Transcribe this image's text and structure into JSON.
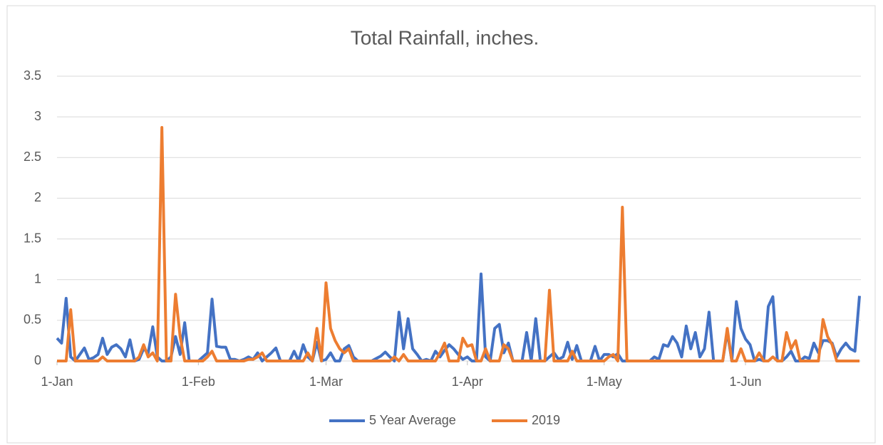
{
  "chart_data": {
    "type": "line",
    "title": "Total Rainfall, inches.",
    "categories": [
      "1-Jan",
      null,
      null,
      null,
      null,
      null,
      null,
      null,
      null,
      null,
      null,
      null,
      null,
      null,
      null,
      null,
      null,
      null,
      null,
      null,
      null,
      null,
      null,
      null,
      null,
      null,
      null,
      null,
      null,
      null,
      null,
      "1-Feb",
      null,
      null,
      null,
      null,
      null,
      null,
      null,
      null,
      null,
      null,
      null,
      null,
      null,
      null,
      null,
      null,
      null,
      null,
      null,
      null,
      null,
      null,
      null,
      null,
      null,
      null,
      null,
      "1-Mar",
      null,
      null,
      null,
      null,
      null,
      null,
      null,
      null,
      null,
      null,
      null,
      null,
      null,
      null,
      null,
      null,
      null,
      null,
      null,
      null,
      null,
      null,
      null,
      null,
      null,
      null,
      null,
      null,
      null,
      null,
      "1-Apr",
      null,
      null,
      null,
      null,
      null,
      null,
      null,
      null,
      null,
      null,
      null,
      null,
      null,
      null,
      null,
      null,
      null,
      null,
      null,
      null,
      null,
      null,
      null,
      null,
      null,
      null,
      null,
      null,
      null,
      "1-May",
      null,
      null,
      null,
      null,
      null,
      null,
      null,
      null,
      null,
      null,
      null,
      null,
      null,
      null,
      null,
      null,
      null,
      null,
      null,
      null,
      null,
      null,
      null,
      null,
      null,
      null,
      null,
      null,
      null,
      null,
      "1-Jun",
      null,
      null,
      null,
      null,
      null,
      null,
      null,
      null,
      null,
      null,
      null,
      null,
      null,
      null,
      null,
      null,
      null,
      null,
      null,
      null,
      null,
      null,
      null,
      null,
      null
    ],
    "series": [
      {
        "name": "5 Year Average",
        "color": "#4472c4",
        "values": [
          0.28,
          0.22,
          0.77,
          0.05,
          0,
          0.08,
          0.16,
          0.02,
          0.04,
          0.08,
          0.28,
          0.08,
          0.17,
          0.2,
          0.15,
          0.05,
          0.26,
          0,
          0.02,
          0.15,
          0.1,
          0.42,
          0.05,
          0,
          0,
          0.05,
          0.3,
          0.08,
          0.47,
          0,
          0,
          0,
          0.05,
          0.1,
          0.76,
          0.18,
          0.17,
          0.17,
          0.02,
          0.02,
          0,
          0.02,
          0.05,
          0.02,
          0.1,
          0,
          0.05,
          0.1,
          0.16,
          0,
          0,
          0,
          0.12,
          0,
          0.2,
          0.05,
          0,
          0.23,
          0,
          0.02,
          0.1,
          0,
          0,
          0.15,
          0.19,
          0.05,
          0,
          0,
          0,
          0,
          0.03,
          0.06,
          0.11,
          0.05,
          0,
          0.6,
          0.15,
          0.52,
          0.15,
          0.08,
          0,
          0.02,
          0,
          0.12,
          0.05,
          0.13,
          0.2,
          0.15,
          0.08,
          0.02,
          0.05,
          0,
          0,
          1.07,
          0.05,
          0,
          0.4,
          0.45,
          0.1,
          0.22,
          0,
          0,
          0,
          0.35,
          0,
          0.52,
          0,
          0,
          0.05,
          0.1,
          0.02,
          0.05,
          0.23,
          0.02,
          0.19,
          0,
          0,
          0,
          0.18,
          0,
          0.08,
          0.08,
          0.05,
          0.09,
          0,
          0,
          0,
          0,
          0,
          0,
          0,
          0.05,
          0.02,
          0.2,
          0.18,
          0.3,
          0.22,
          0.05,
          0.43,
          0.15,
          0.35,
          0.05,
          0.15,
          0.6,
          0,
          0,
          0,
          0.36,
          0,
          0.73,
          0.4,
          0.27,
          0.2,
          0,
          0.02,
          0,
          0.67,
          0.79,
          0,
          0,
          0.05,
          0.12,
          0,
          0,
          0.05,
          0.03,
          0.22,
          0.1,
          0.25,
          0.25,
          0.22,
          0.05,
          0.15,
          0.22,
          0.15,
          0.12,
          0.8
        ]
      },
      {
        "name": "2019",
        "color": "#ed7d31",
        "values": [
          0,
          0,
          0,
          0.63,
          0,
          0,
          0,
          0,
          0,
          0,
          0.05,
          0,
          0,
          0,
          0,
          0,
          0,
          0,
          0.05,
          0.2,
          0.05,
          0.1,
          0,
          2.87,
          0,
          0,
          0.82,
          0.3,
          0,
          0,
          0,
          0,
          0,
          0.05,
          0.12,
          0,
          0,
          0,
          0,
          0,
          0,
          0,
          0.02,
          0.02,
          0.05,
          0.1,
          0,
          0,
          0,
          0,
          0,
          0,
          0,
          0,
          0,
          0.1,
          0,
          0.4,
          0,
          0.96,
          0.4,
          0.25,
          0.15,
          0.1,
          0.15,
          0,
          0,
          0,
          0,
          0,
          0,
          0,
          0,
          0,
          0.05,
          0,
          0.08,
          0,
          0,
          0,
          0,
          0,
          0,
          0,
          0.1,
          0.22,
          0,
          0,
          0,
          0.28,
          0.18,
          0.2,
          0,
          0,
          0.15,
          0,
          0,
          0,
          0.2,
          0.15,
          0,
          0,
          0,
          0,
          0,
          0,
          0,
          0,
          0.87,
          0,
          0,
          0,
          0,
          0.12,
          0,
          0,
          0,
          0,
          0,
          0,
          0,
          0.05,
          0.08,
          0,
          1.89,
          0,
          0,
          0,
          0,
          0,
          0,
          0,
          0,
          0,
          0,
          0,
          0,
          0,
          0,
          0,
          0,
          0,
          0,
          0,
          0,
          0,
          0,
          0.4,
          0,
          0,
          0.15,
          0,
          0,
          0,
          0.1,
          0,
          0,
          0.05,
          0,
          0,
          0.35,
          0.15,
          0.25,
          0,
          0,
          0,
          0,
          0,
          0.51,
          0.3,
          0.2,
          0,
          0,
          0,
          0,
          0,
          0
        ]
      }
    ],
    "ylim": [
      0,
      3.5
    ],
    "yticks": [
      0,
      0.5,
      1,
      1.5,
      2,
      2.5,
      3,
      3.5
    ],
    "grid": true,
    "legend": "bottom"
  }
}
